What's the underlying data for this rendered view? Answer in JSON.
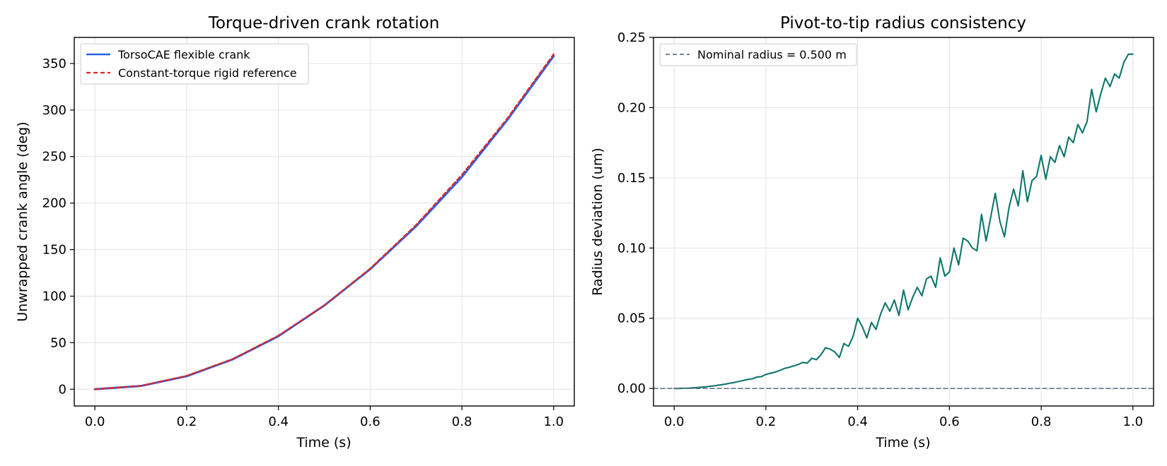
{
  "chart_data": [
    {
      "type": "line",
      "title": "Torque-driven crank rotation",
      "xlabel": "Time (s)",
      "ylabel": "Unwrapped crank angle (deg)",
      "xlim": [
        -0.045,
        1.045
      ],
      "ylim": [
        -18,
        378
      ],
      "xticks": [
        0.0,
        0.2,
        0.4,
        0.6,
        0.8,
        1.0
      ],
      "xtick_labels": [
        "0.0",
        "0.2",
        "0.4",
        "0.6",
        "0.8",
        "1.0"
      ],
      "yticks": [
        0,
        50,
        100,
        150,
        200,
        250,
        300,
        350
      ],
      "ytick_labels": [
        "0",
        "50",
        "100",
        "150",
        "200",
        "250",
        "300",
        "350"
      ],
      "grid": true,
      "legend_position": "top-left",
      "series": [
        {
          "name": "TorsoCAE flexible crank",
          "color": "#2563eb",
          "style": "solid",
          "x": [
            0.0,
            0.1,
            0.2,
            0.3,
            0.4,
            0.5,
            0.6,
            0.7,
            0.8,
            0.9,
            1.0
          ],
          "y": [
            0,
            3.5,
            14,
            32,
            57,
            90,
            129,
            175,
            228,
            290,
            358
          ]
        },
        {
          "name": "Constant-torque rigid reference",
          "color": "#dc2626",
          "style": "dashed",
          "x": [
            0.0,
            0.1,
            0.2,
            0.3,
            0.4,
            0.5,
            0.6,
            0.7,
            0.8,
            0.9,
            1.0
          ],
          "y": [
            0,
            3.6,
            14.4,
            32.4,
            57.6,
            90,
            129.6,
            176.4,
            230.4,
            291.6,
            360
          ]
        }
      ]
    },
    {
      "type": "line",
      "title": "Pivot-to-tip radius consistency",
      "xlabel": "Time (s)",
      "ylabel": "Radius deviation (um)",
      "xlim": [
        -0.045,
        1.045
      ],
      "ylim": [
        -0.0125,
        0.25
      ],
      "xticks": [
        0.0,
        0.2,
        0.4,
        0.6,
        0.8,
        1.0
      ],
      "xtick_labels": [
        "0.0",
        "0.2",
        "0.4",
        "0.6",
        "0.8",
        "1.0"
      ],
      "yticks": [
        0.0,
        0.05,
        0.1,
        0.15,
        0.2,
        0.25
      ],
      "ytick_labels": [
        "0.00",
        "0.05",
        "0.10",
        "0.15",
        "0.20",
        "0.25"
      ],
      "grid": true,
      "legend_position": "top-left",
      "series": [
        {
          "name": "",
          "color": "#0f766e",
          "style": "solid",
          "x": [
            0.0,
            0.01,
            0.02,
            0.03,
            0.04,
            0.05,
            0.06,
            0.07,
            0.08,
            0.09,
            0.1,
            0.11,
            0.12,
            0.13,
            0.14,
            0.15,
            0.16,
            0.17,
            0.18,
            0.19,
            0.2,
            0.21,
            0.22,
            0.23,
            0.24,
            0.25,
            0.26,
            0.27,
            0.28,
            0.29,
            0.3,
            0.31,
            0.32,
            0.33,
            0.34,
            0.35,
            0.36,
            0.37,
            0.38,
            0.39,
            0.4,
            0.41,
            0.42,
            0.43,
            0.44,
            0.45,
            0.46,
            0.47,
            0.48,
            0.49,
            0.5,
            0.51,
            0.52,
            0.53,
            0.54,
            0.55,
            0.56,
            0.57,
            0.58,
            0.59,
            0.6,
            0.61,
            0.62,
            0.63,
            0.64,
            0.65,
            0.66,
            0.67,
            0.68,
            0.69,
            0.7,
            0.71,
            0.72,
            0.73,
            0.74,
            0.75,
            0.76,
            0.77,
            0.78,
            0.79,
            0.8,
            0.81,
            0.82,
            0.83,
            0.84,
            0.85,
            0.86,
            0.87,
            0.88,
            0.89,
            0.9,
            0.91,
            0.92,
            0.93,
            0.94,
            0.95,
            0.96,
            0.97,
            0.98,
            0.99,
            1.0
          ],
          "y": [
            0.0,
            0.0,
            0.0001,
            0.0002,
            0.0004,
            0.0006,
            0.0009,
            0.0012,
            0.0016,
            0.002,
            0.0025,
            0.003,
            0.0036,
            0.0042,
            0.0049,
            0.0056,
            0.0064,
            0.0068,
            0.0081,
            0.0084,
            0.01,
            0.0108,
            0.0116,
            0.0128,
            0.0142,
            0.015,
            0.016,
            0.017,
            0.0185,
            0.018,
            0.0215,
            0.0205,
            0.024,
            0.029,
            0.028,
            0.026,
            0.022,
            0.032,
            0.03,
            0.037,
            0.05,
            0.044,
            0.036,
            0.047,
            0.042,
            0.053,
            0.061,
            0.055,
            0.063,
            0.052,
            0.07,
            0.056,
            0.065,
            0.072,
            0.066,
            0.078,
            0.08,
            0.072,
            0.093,
            0.08,
            0.083,
            0.1,
            0.088,
            0.107,
            0.105,
            0.1,
            0.098,
            0.124,
            0.105,
            0.122,
            0.139,
            0.119,
            0.108,
            0.129,
            0.142,
            0.13,
            0.155,
            0.133,
            0.148,
            0.151,
            0.166,
            0.149,
            0.165,
            0.161,
            0.173,
            0.165,
            0.179,
            0.175,
            0.188,
            0.182,
            0.19,
            0.213,
            0.197,
            0.21,
            0.221,
            0.215,
            0.224,
            0.221,
            0.232,
            0.238,
            0.238
          ]
        },
        {
          "name": "Nominal radius = 0.500 m",
          "color": "#64748b",
          "style": "dashed",
          "x": [
            -0.045,
            1.045
          ],
          "y": [
            0.0,
            0.0
          ]
        }
      ]
    }
  ]
}
